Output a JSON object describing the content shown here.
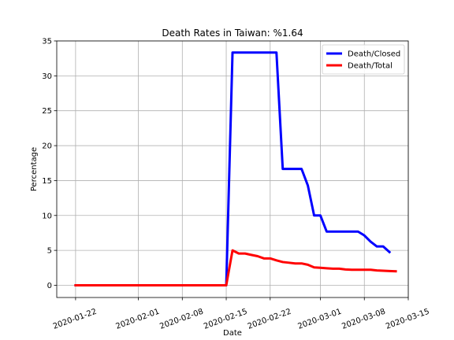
{
  "chart_data": {
    "type": "line",
    "title": "Death Rates in Taiwan: %1.64",
    "xlabel": "Date",
    "ylabel": "Percentage",
    "xlim": [
      "2020-01-19",
      "2020-03-15"
    ],
    "ylim": [
      -1.75,
      35
    ],
    "grid": true,
    "legend_position": "top-right",
    "x_ticks": [
      "2020-01-22",
      "2020-02-01",
      "2020-02-08",
      "2020-02-15",
      "2020-02-22",
      "2020-03-01",
      "2020-03-08",
      "2020-03-15"
    ],
    "y_ticks": [
      0,
      5,
      10,
      15,
      20,
      25,
      30,
      35
    ],
    "series": [
      {
        "name": "Death/Closed",
        "color": "#0000ff",
        "x": [
          "2020-01-22",
          "2020-02-04",
          "2020-02-15",
          "2020-02-16",
          "2020-02-17",
          "2020-02-18",
          "2020-02-19",
          "2020-02-20",
          "2020-02-21",
          "2020-02-22",
          "2020-02-23",
          "2020-02-24",
          "2020-02-25",
          "2020-02-26",
          "2020-02-27",
          "2020-02-28",
          "2020-02-29",
          "2020-03-01",
          "2020-03-02",
          "2020-03-03",
          "2020-03-04",
          "2020-03-05",
          "2020-03-06",
          "2020-03-07",
          "2020-03-08",
          "2020-03-09",
          "2020-03-10",
          "2020-03-11",
          "2020-03-12"
        ],
        "y": [
          0,
          0,
          0,
          33.33,
          33.33,
          33.33,
          33.33,
          33.33,
          33.33,
          33.33,
          33.33,
          16.67,
          16.67,
          16.67,
          16.67,
          14.29,
          10,
          10,
          7.69,
          7.69,
          7.69,
          7.69,
          7.69,
          7.69,
          7.14,
          6.25,
          5.56,
          5.56,
          4.76
        ]
      },
      {
        "name": "Death/Total",
        "color": "#ff0000",
        "x": [
          "2020-01-22",
          "2020-02-04",
          "2020-02-15",
          "2020-02-16",
          "2020-02-17",
          "2020-02-18",
          "2020-02-19",
          "2020-02-20",
          "2020-02-21",
          "2020-02-22",
          "2020-02-23",
          "2020-02-24",
          "2020-02-25",
          "2020-02-26",
          "2020-02-27",
          "2020-02-28",
          "2020-02-29",
          "2020-03-01",
          "2020-03-02",
          "2020-03-03",
          "2020-03-04",
          "2020-03-05",
          "2020-03-06",
          "2020-03-07",
          "2020-03-08",
          "2020-03-09",
          "2020-03-10",
          "2020-03-11",
          "2020-03-12",
          "2020-03-13"
        ],
        "y": [
          0,
          0,
          0,
          5,
          4.55,
          4.55,
          4.35,
          4.17,
          3.85,
          3.85,
          3.57,
          3.33,
          3.23,
          3.13,
          3.13,
          2.94,
          2.56,
          2.5,
          2.44,
          2.38,
          2.38,
          2.27,
          2.22,
          2.22,
          2.22,
          2.22,
          2.13,
          2.08,
          2.04,
          2
        ]
      }
    ]
  }
}
